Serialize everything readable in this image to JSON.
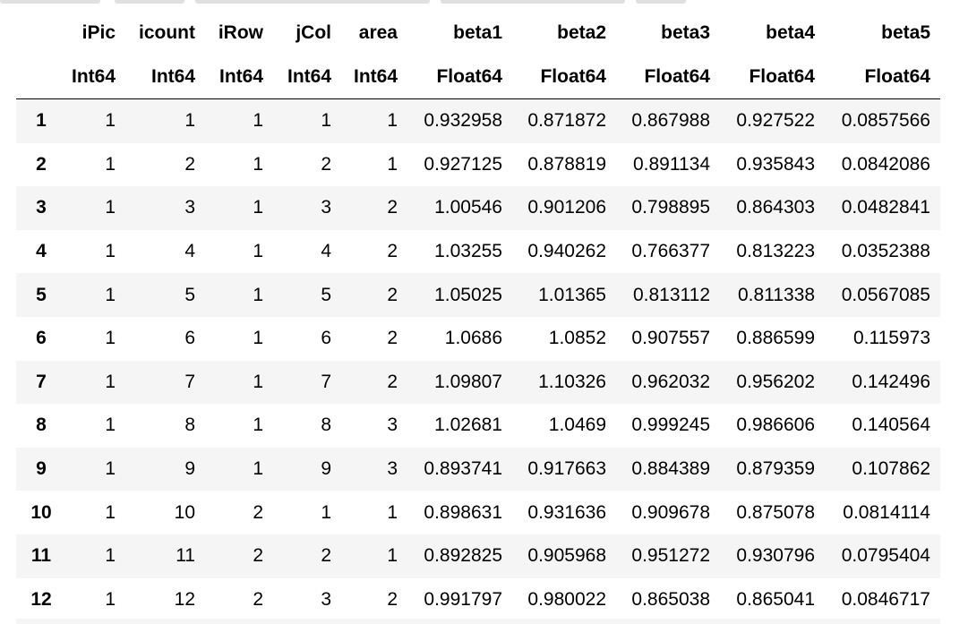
{
  "table": {
    "columns": [
      {
        "name": "iPic",
        "type": "Int64"
      },
      {
        "name": "icount",
        "type": "Int64"
      },
      {
        "name": "iRow",
        "type": "Int64"
      },
      {
        "name": "jCol",
        "type": "Int64"
      },
      {
        "name": "area",
        "type": "Int64"
      },
      {
        "name": "beta1",
        "type": "Float64"
      },
      {
        "name": "beta2",
        "type": "Float64"
      },
      {
        "name": "beta3",
        "type": "Float64"
      },
      {
        "name": "beta4",
        "type": "Float64"
      },
      {
        "name": "beta5",
        "type": "Float64"
      }
    ],
    "rows": [
      {
        "index": "1",
        "cells": [
          "1",
          "1",
          "1",
          "1",
          "1",
          "0.932958",
          "0.871872",
          "0.867988",
          "0.927522",
          "0.0857566"
        ]
      },
      {
        "index": "2",
        "cells": [
          "1",
          "2",
          "1",
          "2",
          "1",
          "0.927125",
          "0.878819",
          "0.891134",
          "0.935843",
          "0.0842086"
        ]
      },
      {
        "index": "3",
        "cells": [
          "1",
          "3",
          "1",
          "3",
          "2",
          "1.00546",
          "0.901206",
          "0.798895",
          "0.864303",
          "0.0482841"
        ]
      },
      {
        "index": "4",
        "cells": [
          "1",
          "4",
          "1",
          "4",
          "2",
          "1.03255",
          "0.940262",
          "0.766377",
          "0.813223",
          "0.0352388"
        ]
      },
      {
        "index": "5",
        "cells": [
          "1",
          "5",
          "1",
          "5",
          "2",
          "1.05025",
          "1.01365",
          "0.813112",
          "0.811338",
          "0.0567085"
        ]
      },
      {
        "index": "6",
        "cells": [
          "1",
          "6",
          "1",
          "6",
          "2",
          "1.0686",
          "1.0852",
          "0.907557",
          "0.886599",
          "0.115973"
        ]
      },
      {
        "index": "7",
        "cells": [
          "1",
          "7",
          "1",
          "7",
          "2",
          "1.09807",
          "1.10326",
          "0.962032",
          "0.956202",
          "0.142496"
        ]
      },
      {
        "index": "8",
        "cells": [
          "1",
          "8",
          "1",
          "8",
          "3",
          "1.02681",
          "1.0469",
          "0.999245",
          "0.986606",
          "0.140564"
        ]
      },
      {
        "index": "9",
        "cells": [
          "1",
          "9",
          "1",
          "9",
          "3",
          "0.893741",
          "0.917663",
          "0.884389",
          "0.879359",
          "0.107862"
        ]
      },
      {
        "index": "10",
        "cells": [
          "1",
          "10",
          "2",
          "1",
          "1",
          "0.898631",
          "0.931636",
          "0.909678",
          "0.875078",
          "0.0814114"
        ]
      },
      {
        "index": "11",
        "cells": [
          "1",
          "11",
          "2",
          "2",
          "1",
          "0.892825",
          "0.905968",
          "0.951272",
          "0.930796",
          "0.0795404"
        ]
      },
      {
        "index": "12",
        "cells": [
          "1",
          "12",
          "2",
          "3",
          "2",
          "0.991797",
          "0.980022",
          "0.865038",
          "0.865041",
          "0.0846717"
        ]
      }
    ]
  }
}
